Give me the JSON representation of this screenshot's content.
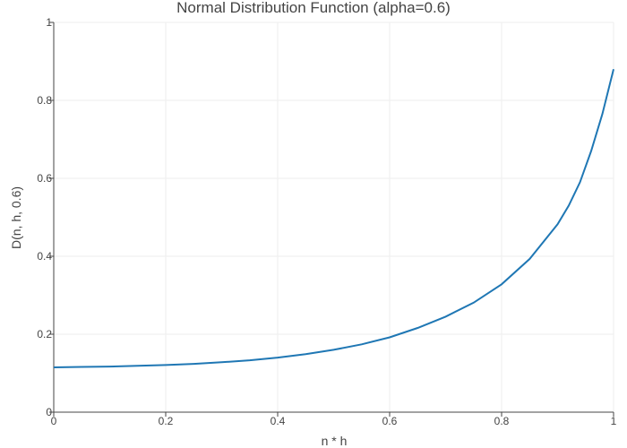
{
  "chart_data": {
    "type": "line",
    "title": "Normal Distribution Function (alpha=0.6)",
    "xlabel": "n * h",
    "ylabel": "D(n, h, 0.6)",
    "xlim": [
      0,
      1
    ],
    "ylim": [
      0,
      1
    ],
    "xticks": [
      0,
      0.2,
      0.4,
      0.6,
      0.8,
      1
    ],
    "xtick_labels": [
      "0",
      "0.2",
      "0.4",
      "0.6",
      "0.8",
      "1"
    ],
    "yticks": [
      0,
      0.2,
      0.4,
      0.6,
      0.8,
      1
    ],
    "ytick_labels": [
      "0",
      "0.2",
      "0.4",
      "0.6",
      "0.8",
      "1"
    ],
    "grid": true,
    "line_color": "#1f77b4",
    "series": [
      {
        "x": [
          0,
          0.05,
          0.1,
          0.15,
          0.2,
          0.25,
          0.3,
          0.35,
          0.4,
          0.45,
          0.5,
          0.55,
          0.6,
          0.65,
          0.7,
          0.75,
          0.8,
          0.85,
          0.9,
          0.92,
          0.94,
          0.96,
          0.98,
          1.0
        ],
        "y": [
          0.115,
          0.116,
          0.117,
          0.119,
          0.121,
          0.124,
          0.128,
          0.133,
          0.14,
          0.149,
          0.16,
          0.174,
          0.192,
          0.216,
          0.245,
          0.281,
          0.328,
          0.393,
          0.482,
          0.53,
          0.59,
          0.67,
          0.765,
          0.88
        ]
      }
    ]
  }
}
